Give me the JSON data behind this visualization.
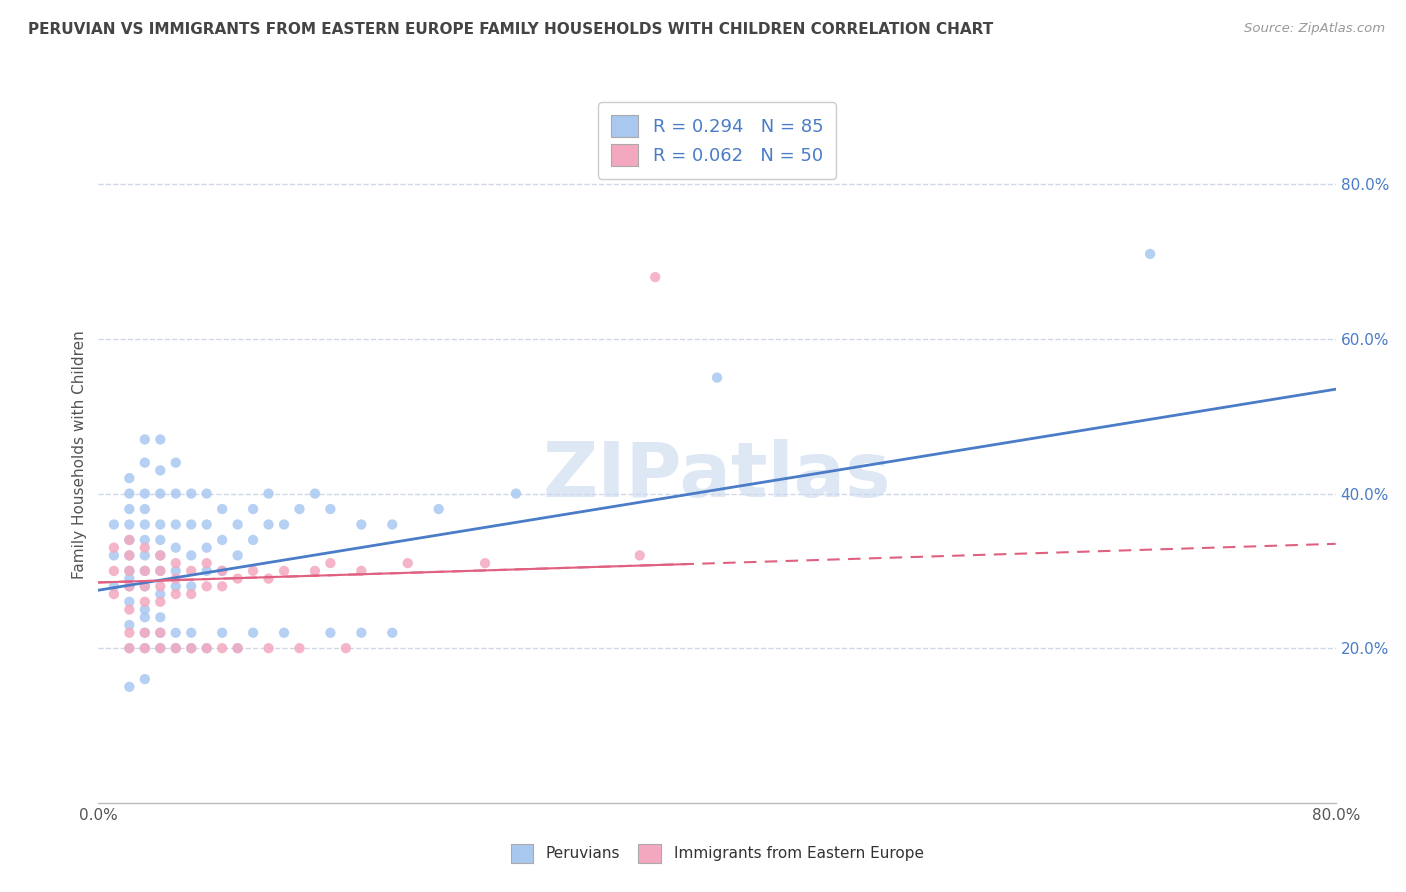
{
  "title": "PERUVIAN VS IMMIGRANTS FROM EASTERN EUROPE FAMILY HOUSEHOLDS WITH CHILDREN CORRELATION CHART",
  "source": "Source: ZipAtlas.com",
  "ylabel": "Family Households with Children",
  "legend_label1": "Peruvians",
  "legend_label2": "Immigrants from Eastern Europe",
  "R1": 0.294,
  "N1": 85,
  "R2": 0.062,
  "N2": 50,
  "color1": "#A8C8F0",
  "color2": "#F4A8C0",
  "line_color1": "#4A7CC7",
  "line_color2": "#E06080",
  "watermark": "ZIPatlas",
  "watermark_color": "#C8D8EE",
  "background": "#FFFFFF",
  "xlim": [
    0.0,
    0.8
  ],
  "ylim": [
    0.0,
    0.9
  ],
  "ytick_values": [
    0.2,
    0.4,
    0.6,
    0.8
  ],
  "grid_color": "#D0D8E8",
  "title_color": "#444444",
  "line1_start_y": 0.275,
  "line1_end_y": 0.535,
  "line2_start_y": 0.285,
  "line2_end_y": 0.335,
  "scatter1_x": [
    0.01,
    0.01,
    0.01,
    0.02,
    0.02,
    0.02,
    0.02,
    0.02,
    0.02,
    0.02,
    0.02,
    0.02,
    0.02,
    0.03,
    0.03,
    0.03,
    0.03,
    0.03,
    0.03,
    0.03,
    0.03,
    0.03,
    0.03,
    0.04,
    0.04,
    0.04,
    0.04,
    0.04,
    0.04,
    0.04,
    0.04,
    0.05,
    0.05,
    0.05,
    0.05,
    0.05,
    0.05,
    0.06,
    0.06,
    0.06,
    0.06,
    0.07,
    0.07,
    0.07,
    0.07,
    0.08,
    0.08,
    0.08,
    0.09,
    0.09,
    0.1,
    0.1,
    0.11,
    0.11,
    0.12,
    0.13,
    0.14,
    0.15,
    0.17,
    0.19,
    0.22,
    0.27,
    0.4,
    0.68,
    0.02,
    0.02,
    0.03,
    0.03,
    0.03,
    0.04,
    0.04,
    0.04,
    0.05,
    0.05,
    0.06,
    0.06,
    0.07,
    0.08,
    0.09,
    0.1,
    0.12,
    0.15,
    0.17,
    0.19,
    0.02,
    0.03
  ],
  "scatter1_y": [
    0.28,
    0.32,
    0.36,
    0.26,
    0.28,
    0.3,
    0.32,
    0.34,
    0.36,
    0.38,
    0.4,
    0.42,
    0.29,
    0.25,
    0.28,
    0.3,
    0.32,
    0.34,
    0.36,
    0.38,
    0.4,
    0.44,
    0.47,
    0.27,
    0.3,
    0.32,
    0.34,
    0.36,
    0.4,
    0.43,
    0.47,
    0.28,
    0.3,
    0.33,
    0.36,
    0.4,
    0.44,
    0.28,
    0.32,
    0.36,
    0.4,
    0.3,
    0.33,
    0.36,
    0.4,
    0.3,
    0.34,
    0.38,
    0.32,
    0.36,
    0.34,
    0.38,
    0.36,
    0.4,
    0.36,
    0.38,
    0.4,
    0.38,
    0.36,
    0.36,
    0.38,
    0.4,
    0.55,
    0.71,
    0.2,
    0.23,
    0.2,
    0.22,
    0.24,
    0.2,
    0.22,
    0.24,
    0.2,
    0.22,
    0.2,
    0.22,
    0.2,
    0.22,
    0.2,
    0.22,
    0.22,
    0.22,
    0.22,
    0.22,
    0.15,
    0.16
  ],
  "scatter2_x": [
    0.01,
    0.01,
    0.01,
    0.02,
    0.02,
    0.02,
    0.02,
    0.02,
    0.03,
    0.03,
    0.03,
    0.03,
    0.04,
    0.04,
    0.04,
    0.04,
    0.05,
    0.05,
    0.05,
    0.06,
    0.06,
    0.07,
    0.07,
    0.08,
    0.08,
    0.09,
    0.1,
    0.11,
    0.12,
    0.14,
    0.15,
    0.17,
    0.2,
    0.25,
    0.35,
    0.02,
    0.02,
    0.03,
    0.03,
    0.04,
    0.04,
    0.05,
    0.06,
    0.07,
    0.08,
    0.09,
    0.11,
    0.13,
    0.16,
    0.36
  ],
  "scatter2_y": [
    0.27,
    0.3,
    0.33,
    0.25,
    0.28,
    0.3,
    0.32,
    0.34,
    0.26,
    0.28,
    0.3,
    0.33,
    0.26,
    0.28,
    0.3,
    0.32,
    0.27,
    0.29,
    0.31,
    0.27,
    0.3,
    0.28,
    0.31,
    0.28,
    0.3,
    0.29,
    0.3,
    0.29,
    0.3,
    0.3,
    0.31,
    0.3,
    0.31,
    0.31,
    0.32,
    0.2,
    0.22,
    0.2,
    0.22,
    0.2,
    0.22,
    0.2,
    0.2,
    0.2,
    0.2,
    0.2,
    0.2,
    0.2,
    0.2,
    0.68
  ]
}
